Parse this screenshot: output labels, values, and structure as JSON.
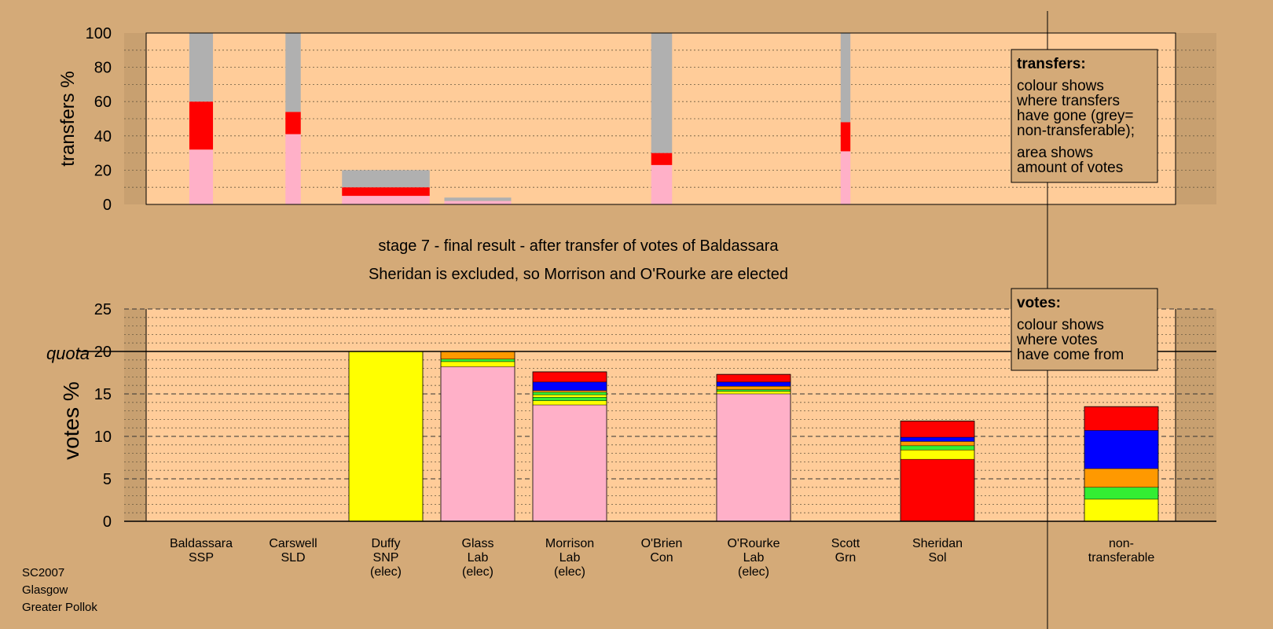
{
  "chart_data": [
    {
      "type": "bar",
      "stacked": true,
      "ylabel": "transfers %",
      "ylim": [
        0,
        100
      ],
      "yticks": [
        0,
        20,
        40,
        60,
        80,
        100
      ],
      "grid": true,
      "legend_placement": "top-right",
      "bars": [
        {
          "candidate": "Baldassara",
          "width_votes": 1.7,
          "segments": [
            {
              "color": "#ffb0c8",
              "value": 32
            },
            {
              "color": "#ff0000",
              "value": 28
            },
            {
              "color": "#b0b0b0",
              "value": 40
            }
          ]
        },
        {
          "candidate": "Carswell",
          "width_votes": 1.1,
          "segments": [
            {
              "color": "#ffb0c8",
              "value": 41
            },
            {
              "color": "#ff0000",
              "value": 13
            },
            {
              "color": "#b0b0b0",
              "value": 46
            }
          ]
        },
        {
          "candidate": "Duffy",
          "width_votes": 6.3,
          "segments": [
            {
              "color": "#ffb0c8",
              "value": 5
            },
            {
              "color": "#ff0000",
              "value": 5
            },
            {
              "color": "#b0b0b0",
              "value": 10
            }
          ]
        },
        {
          "candidate": "Glass",
          "width_votes": 4.8,
          "segments": [
            {
              "color": "#ffb0c8",
              "value": 2
            },
            {
              "color": "#b0b0b0",
              "value": 2
            }
          ]
        },
        {
          "candidate": "O'Brien",
          "width_votes": 1.5,
          "segments": [
            {
              "color": "#ffb0c8",
              "value": 23
            },
            {
              "color": "#ff0000",
              "value": 7
            },
            {
              "color": "#b0b0b0",
              "value": 70
            }
          ]
        },
        {
          "candidate": "Scott",
          "width_votes": 0.7,
          "segments": [
            {
              "color": "#ffb0c8",
              "value": 31
            },
            {
              "color": "#ff0000",
              "value": 17
            },
            {
              "color": "#b0b0b0",
              "value": 52
            }
          ]
        }
      ]
    },
    {
      "type": "bar",
      "stacked": true,
      "ylabel": "votes %",
      "ylim": [
        0,
        25
      ],
      "yticks": [
        0,
        5,
        10,
        15,
        20,
        25
      ],
      "quota": 20,
      "quota_label": "quota",
      "grid": true,
      "legend_placement": "top-right",
      "bars": [
        {
          "name": "Baldassara",
          "party": "SSP",
          "elected": "",
          "segments": []
        },
        {
          "name": "Carswell",
          "party": "SLD",
          "elected": "",
          "segments": []
        },
        {
          "name": "Duffy",
          "party": "SNP",
          "elected": "(elec)",
          "segments": [
            {
              "color": "#ffff00",
              "value": 20
            }
          ]
        },
        {
          "name": "Glass",
          "party": "Lab",
          "elected": "(elec)",
          "segments": [
            {
              "color": "#ffb0c8",
              "value": 18.2
            },
            {
              "color": "#ffff00",
              "value": 0.6
            },
            {
              "color": "#33ee33",
              "value": 0.3
            },
            {
              "color": "#ff9900",
              "value": 0.9
            }
          ]
        },
        {
          "name": "Morrison",
          "party": "Lab",
          "elected": "(elec)",
          "segments": [
            {
              "color": "#ffb0c8",
              "value": 13.7
            },
            {
              "color": "#ffff00",
              "value": 0.5
            },
            {
              "color": "#33ee33",
              "value": 0.4
            },
            {
              "color": "#ffff00",
              "value": 0.3
            },
            {
              "color": "#33ee33",
              "value": 0.3
            },
            {
              "color": "#ff9900",
              "value": 0.2
            },
            {
              "color": "#0000ff",
              "value": 1.0
            },
            {
              "color": "#ff0000",
              "value": 1.2
            }
          ]
        },
        {
          "name": "O'Brien",
          "party": "Con",
          "elected": "",
          "segments": []
        },
        {
          "name": "O'Rourke",
          "party": "Lab",
          "elected": "(elec)",
          "segments": [
            {
              "color": "#ffb0c8",
              "value": 15.0
            },
            {
              "color": "#ffff00",
              "value": 0.3
            },
            {
              "color": "#33ee33",
              "value": 0.2
            },
            {
              "color": "#ff9900",
              "value": 0.4
            },
            {
              "color": "#0000ff",
              "value": 0.5
            },
            {
              "color": "#ff0000",
              "value": 0.9
            }
          ]
        },
        {
          "name": "Scott",
          "party": "Grn",
          "elected": "",
          "segments": []
        },
        {
          "name": "Sheridan",
          "party": "Sol",
          "elected": "",
          "segments": [
            {
              "color": "#ff0000",
              "value": 7.3
            },
            {
              "color": "#ffff00",
              "value": 1.1
            },
            {
              "color": "#33ee33",
              "value": 0.5
            },
            {
              "color": "#ff9900",
              "value": 0.5
            },
            {
              "color": "#0000ff",
              "value": 0.5
            },
            {
              "color": "#ff0000",
              "value": 1.9
            }
          ]
        },
        {
          "name": "non-",
          "party": "transferable",
          "elected": "",
          "segments": [
            {
              "color": "#ffff00",
              "value": 2.6
            },
            {
              "color": "#33ee33",
              "value": 1.4
            },
            {
              "color": "#ff9900",
              "value": 2.2
            },
            {
              "color": "#0000ff",
              "value": 4.5
            },
            {
              "color": "#ff0000",
              "value": 2.8
            }
          ]
        }
      ]
    }
  ],
  "stage_title": "stage 7 - final result - after transfer of votes of Baldassara",
  "stage_subtitle": "Sheridan is excluded, so Morrison and O'Rourke are elected",
  "legend_transfers": {
    "title": "transfers:",
    "lines": [
      "colour shows",
      "where transfers",
      "have gone (grey=",
      "non-transferable);",
      "area shows",
      "amount of votes"
    ]
  },
  "legend_votes": {
    "title": "votes:",
    "lines": [
      "colour shows",
      "where votes",
      "have come from"
    ]
  },
  "footer": [
    "SC2007",
    "Glasgow",
    "Greater Pollok"
  ]
}
